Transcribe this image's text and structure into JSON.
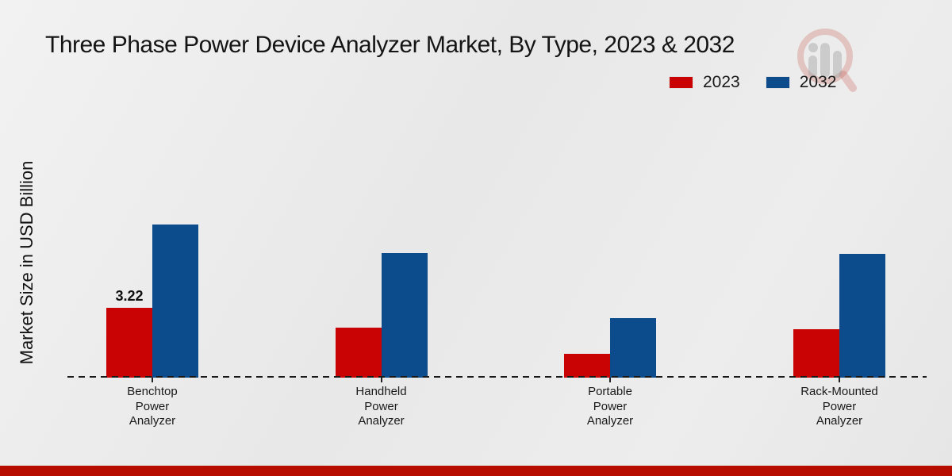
{
  "page": {
    "footer_bar_color": "#b60d00",
    "watermark_icon": "magnifier-bar-chart-logo"
  },
  "chart_data": {
    "type": "bar",
    "title": "Three Phase Power Device Analyzer Market, By Type, 2023 & 2032",
    "ylabel": "Market Size in USD Billion",
    "xlabel": "",
    "categories": [
      "Benchtop Power Analyzer",
      "Handheld Power Analyzer",
      "Portable Power Analyzer",
      "Rack-Mounted Power Analyzer"
    ],
    "series": [
      {
        "name": "2023",
        "color": "#c90303",
        "values": [
          3.22,
          2.3,
          1.1,
          2.25
        ]
      },
      {
        "name": "2032",
        "color": "#0d4c8c",
        "values": [
          7.05,
          5.75,
          2.75,
          5.7
        ]
      }
    ],
    "data_labels": [
      {
        "series": "2023",
        "category_index": 0,
        "text": "3.22"
      }
    ],
    "baseline": {
      "style": "dashed",
      "color": "#1a1a1a",
      "value": 0
    },
    "legend_position": "top-right",
    "grid": false,
    "ylim": [
      0,
      8
    ]
  }
}
